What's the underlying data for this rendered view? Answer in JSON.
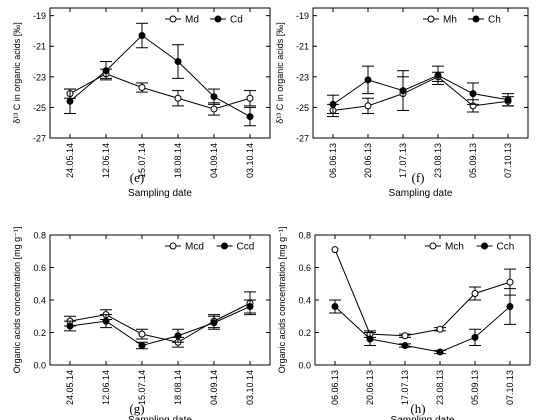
{
  "chart_data": [
    {
      "panel": "(e)",
      "type": "line",
      "xlabel": "Sampling date",
      "ylabel": "δ¹³ C in organic acids [‰]",
      "categories": [
        "24.05.14",
        "12.06.14",
        "15.07.14",
        "18.08.14",
        "04.09.14",
        "03.10.14"
      ],
      "ylim": [
        -27,
        -18.5
      ],
      "yticks": [
        -19,
        -21,
        -23,
        -25,
        -27
      ],
      "ytick_labels": [
        "-19",
        "-21",
        "-23",
        "-25",
        "-27"
      ],
      "legend": "top-right",
      "series": [
        {
          "name": "Md",
          "marker": "open",
          "values": [
            -24.1,
            -22.8,
            -23.7,
            -24.4,
            -25.1,
            -24.4
          ],
          "errors": [
            0.3,
            0.3,
            0.3,
            0.5,
            0.4,
            0.5
          ]
        },
        {
          "name": "Cd",
          "marker": "filled",
          "values": [
            -24.6,
            -22.6,
            -20.3,
            -22.0,
            -24.3,
            -25.6
          ],
          "errors": [
            0.8,
            0.6,
            0.8,
            1.1,
            0.5,
            0.6
          ]
        }
      ]
    },
    {
      "panel": "(f)",
      "type": "line",
      "xlabel": "Sampling date",
      "ylabel": "δ¹³ C in organic acids [‰]",
      "categories": [
        "06.06.13",
        "20.06.13",
        "17.07.13",
        "23.08.13",
        "05.09.13",
        "07.10.13"
      ],
      "ylim": [
        -27,
        -18.5
      ],
      "yticks": [
        -19,
        -21,
        -23,
        -25,
        -27
      ],
      "ytick_labels": [
        "-19",
        "-21",
        "-23",
        "-25",
        "-27"
      ],
      "legend": "top-right",
      "series": [
        {
          "name": "Mh",
          "marker": "open",
          "values": [
            -25.2,
            -24.9,
            -24.1,
            -23.0,
            -24.9,
            -24.6
          ],
          "errors": [
            0.4,
            0.5,
            1.1,
            0.3,
            0.4,
            0.3
          ]
        },
        {
          "name": "Ch",
          "marker": "filled",
          "values": [
            -24.8,
            -23.2,
            -23.9,
            -22.9,
            -24.1,
            -24.5
          ],
          "errors": [
            0.6,
            0.9,
            1.3,
            0.6,
            0.7,
            0.4
          ]
        }
      ]
    },
    {
      "panel": "(g)",
      "type": "line",
      "xlabel": "Sampling date",
      "ylabel": "Organic acids concentration [mg g⁻¹]",
      "categories": [
        "24.05.14",
        "12.06.14",
        "15.07.14",
        "18.08.14",
        "04.09.14",
        "03.10.14"
      ],
      "ylim": [
        0,
        0.8
      ],
      "yticks": [
        0,
        0.2,
        0.4,
        0.6,
        0.8
      ],
      "ytick_labels": [
        "0.0",
        "0.2",
        "0.4",
        "0.6",
        "0.8"
      ],
      "legend": "top-right",
      "series": [
        {
          "name": "Mcd",
          "marker": "open",
          "values": [
            0.27,
            0.31,
            0.19,
            0.14,
            0.27,
            0.38
          ],
          "errors": [
            0.03,
            0.03,
            0.03,
            0.03,
            0.04,
            0.07
          ]
        },
        {
          "name": "Ccd",
          "marker": "filled",
          "values": [
            0.24,
            0.27,
            0.12,
            0.18,
            0.26,
            0.36
          ],
          "errors": [
            0.03,
            0.04,
            0.02,
            0.04,
            0.04,
            0.04
          ]
        }
      ]
    },
    {
      "panel": "(h)",
      "type": "line",
      "xlabel": "Sampling date",
      "ylabel": "Organic acids concentration [mg g⁻¹]",
      "categories": [
        "06.06.13",
        "20.06.13",
        "17.07.13",
        "23.08.13",
        "05.09.13",
        "07.10.13"
      ],
      "ylim": [
        0,
        0.8
      ],
      "yticks": [
        0,
        0.2,
        0.4,
        0.6,
        0.8
      ],
      "ytick_labels": [
        "0.0",
        "0.2",
        "0.4",
        "0.6",
        "0.8"
      ],
      "legend": "top-right",
      "series": [
        {
          "name": "Mch",
          "marker": "open",
          "values": [
            0.71,
            0.19,
            0.18,
            0.22,
            0.44,
            0.51
          ],
          "errors": [
            0.0,
            0.02,
            0.01,
            0.01,
            0.04,
            0.08
          ]
        },
        {
          "name": "Cch",
          "marker": "filled",
          "values": [
            0.36,
            0.16,
            0.12,
            0.08,
            0.17,
            0.36
          ],
          "errors": [
            0.04,
            0.04,
            0.01,
            0.01,
            0.05,
            0.11
          ]
        }
      ]
    }
  ]
}
